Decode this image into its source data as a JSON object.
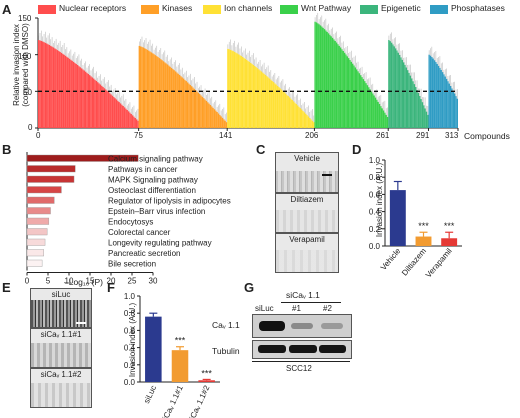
{
  "panels": {
    "A": "A",
    "B": "B",
    "C": "C",
    "D": "D",
    "E": "E",
    "F": "F",
    "G": "G"
  },
  "panel_a": {
    "ylabel": "Relative invasion index",
    "ylabel2": "(compared with DMSO)",
    "xlabel": "Compounds",
    "legend": [
      {
        "name": "Nuclear receptors",
        "color": "#ff4d4d"
      },
      {
        "name": "Kinases",
        "color": "#ff9f27"
      },
      {
        "name": "Ion channels",
        "color": "#ffe135"
      },
      {
        "name": "Wnt Pathway",
        "color": "#3ad04a"
      },
      {
        "name": "Epigenetic",
        "color": "#3bb57c"
      },
      {
        "name": "Phosphatases",
        "color": "#2f9cc4"
      }
    ],
    "yticks": [
      "150",
      "100",
      "50",
      "0"
    ],
    "xticks": [
      "0",
      "75",
      "141",
      "206",
      "261",
      "291",
      "313"
    ]
  },
  "panel_b": {
    "xlabel": "–Log₁₀ (P)",
    "xticks": [
      "0",
      "5",
      "10",
      "15",
      "20",
      "25",
      "30"
    ]
  },
  "panel_c": {
    "images": [
      "Vehicle",
      "Diltiazem",
      "Verapamil"
    ]
  },
  "panel_d": {
    "ylabel": "Invasion index (A.U.)",
    "yticks": [
      "1.0",
      "0.8",
      "0.6",
      "0.4",
      "0.2",
      "0.0"
    ],
    "sig": [
      "***",
      "***"
    ]
  },
  "panel_e": {
    "images": [
      "siLuc",
      "siCaᵥ 1.1#1",
      "siCaᵥ 1.1#2"
    ]
  },
  "panel_f": {
    "ylabel": "Invasion index (A.U.)",
    "yticks": [
      "1.0",
      "0.8",
      "0.6",
      "0.4",
      "0.2",
      "0.0"
    ],
    "sig": [
      "***",
      "***"
    ]
  },
  "panel_g": {
    "header": "siCaᵥ 1.1",
    "lanes": [
      "siLuc",
      "#1",
      "#2"
    ],
    "bands": [
      "Caᵥ 1.1",
      "Tubulin"
    ],
    "cell_line": "SCC12"
  },
  "chart_data": [
    {
      "panel": "A",
      "type": "bar",
      "title": "",
      "xlabel": "Compounds",
      "ylabel": "Relative invasion index (compared with DMSO)",
      "ylim": [
        0,
        150
      ],
      "reference_line": 50,
      "series": [
        {
          "name": "Nuclear receptors",
          "x_range": [
            0,
            75
          ],
          "max": 120,
          "min": 10
        },
        {
          "name": "Kinases",
          "x_range": [
            75,
            141
          ],
          "max": 112,
          "min": 8
        },
        {
          "name": "Ion channels",
          "x_range": [
            141,
            206
          ],
          "max": 108,
          "min": 8
        },
        {
          "name": "Wnt Pathway",
          "x_range": [
            206,
            261
          ],
          "max": 145,
          "min": 15
        },
        {
          "name": "Epigenetic",
          "x_range": [
            261,
            291
          ],
          "max": 120,
          "min": 18
        },
        {
          "name": "Phosphatases",
          "x_range": [
            291,
            313
          ],
          "max": 100,
          "min": 40
        }
      ]
    },
    {
      "panel": "B",
      "type": "bar",
      "orientation": "horizontal",
      "xlabel": "–Log₁₀ (P)",
      "xlim": [
        0,
        30
      ],
      "categories": [
        "Calcium signaling pathway",
        "Pathways in cancer",
        "MAPK Signaling pathway",
        "Osteoclast differentiation",
        "Regulator of lipolysis in adipocytes",
        "Epstein–Barr virus infection",
        "Endocytosys",
        "Colorectal cancer",
        "Longevity regulating pathway",
        "Pancreatic secretion",
        "Bile secretion"
      ],
      "values": [
        26.5,
        11.5,
        11.2,
        8.2,
        6.5,
        5.6,
        5.2,
        4.8,
        4.3,
        4.0,
        3.6
      ]
    },
    {
      "panel": "D",
      "type": "bar",
      "ylabel": "Invasion index (A.U.)",
      "ylim": [
        0,
        1.0
      ],
      "categories": [
        "Vehicle",
        "Diltiazem",
        "Verapamil"
      ],
      "values": [
        0.65,
        0.11,
        0.09
      ],
      "errors": [
        0.1,
        0.05,
        0.07
      ],
      "colors": [
        "#2b3a8f",
        "#f29b30",
        "#e53935"
      ]
    },
    {
      "panel": "F",
      "type": "bar",
      "ylabel": "Invasion index (A.U.)",
      "ylim": [
        0,
        1.0
      ],
      "categories": [
        "siLuc",
        "siCaᵥ 1.1#1",
        "siCaᵥ 1.1#2"
      ],
      "values": [
        0.76,
        0.37,
        0.02
      ],
      "errors": [
        0.04,
        0.04,
        0.01
      ],
      "colors": [
        "#2b3a8f",
        "#f29b30",
        "#e53935"
      ]
    }
  ]
}
